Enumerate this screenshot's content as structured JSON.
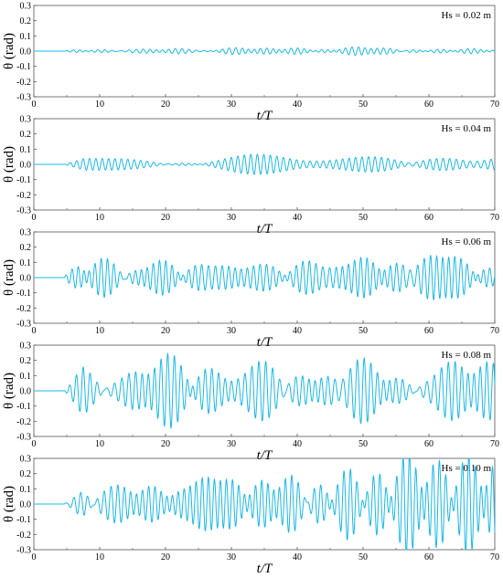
{
  "chart_data": [
    {
      "type": "line",
      "annotation": "Hs = 0.02 m",
      "ylabel": "θ (rad)",
      "xlabel": "t/T",
      "xlim": [
        0,
        70
      ],
      "ylim": [
        -0.3,
        0.3
      ],
      "xticks": [
        "0",
        "10",
        "20",
        "30",
        "40",
        "50",
        "60",
        "70"
      ],
      "yticks": [
        "0.3",
        "0.2",
        "0.1",
        "0.0",
        "-0.1",
        "-0.2",
        "-0.3"
      ],
      "series": [
        {
          "amplitude": 0.025,
          "start": 4.5,
          "seed": 1
        }
      ]
    },
    {
      "type": "line",
      "annotation": "Hs = 0.04 m",
      "ylabel": "θ (rad)",
      "xlabel": "t/T",
      "xlim": [
        0,
        70
      ],
      "ylim": [
        -0.3,
        0.3
      ],
      "xticks": [
        "0",
        "10",
        "20",
        "30",
        "40",
        "50",
        "60",
        "70"
      ],
      "yticks": [
        "0.3",
        "0.2",
        "0.1",
        "0.0",
        "-0.1",
        "-0.2",
        "-0.3"
      ],
      "series": [
        {
          "amplitude": 0.07,
          "start": 4.5,
          "seed": 2
        }
      ]
    },
    {
      "type": "line",
      "annotation": "Hs = 0.06 m",
      "ylabel": "θ (rad)",
      "xlabel": "t/T",
      "xlim": [
        0,
        70
      ],
      "ylim": [
        -0.3,
        0.3
      ],
      "xticks": [
        "0",
        "10",
        "20",
        "30",
        "40",
        "50",
        "60",
        "70"
      ],
      "yticks": [
        "0.3",
        "0.2",
        "0.1",
        "0.0",
        "-0.1",
        "-0.2",
        "-0.3"
      ],
      "series": [
        {
          "amplitude": 0.15,
          "start": 4.5,
          "seed": 3
        }
      ]
    },
    {
      "type": "line",
      "annotation": "Hs = 0.08 m",
      "ylabel": "θ (rad)",
      "xlabel": "t/T",
      "xlim": [
        0,
        70
      ],
      "ylim": [
        -0.3,
        0.3
      ],
      "xticks": [
        "0",
        "10",
        "20",
        "30",
        "40",
        "50",
        "60",
        "70"
      ],
      "yticks": [
        "0.3",
        "0.2",
        "0.1",
        "0.0",
        "-0.1",
        "-0.2",
        "-0.3"
      ],
      "series": [
        {
          "amplitude": 0.22,
          "start": 4.5,
          "seed": 4
        }
      ]
    },
    {
      "type": "line",
      "annotation": "Hs = 0.10 m",
      "ylabel": "θ (rad)",
      "xlabel": "t/T",
      "xlim": [
        0,
        70
      ],
      "ylim": [
        -0.3,
        0.3
      ],
      "xticks": [
        "0",
        "10",
        "20",
        "30",
        "40",
        "50",
        "60",
        "70"
      ],
      "yticks": [
        "0.3",
        "0.2",
        "0.1",
        "0.0",
        "-0.1",
        "-0.2",
        "-0.3"
      ],
      "series": [
        {
          "amplitude": 0.27,
          "start": 4.5,
          "seed": 5
        }
      ]
    }
  ],
  "colors": {
    "line": "#1ab8e8",
    "axis": "#555555"
  }
}
